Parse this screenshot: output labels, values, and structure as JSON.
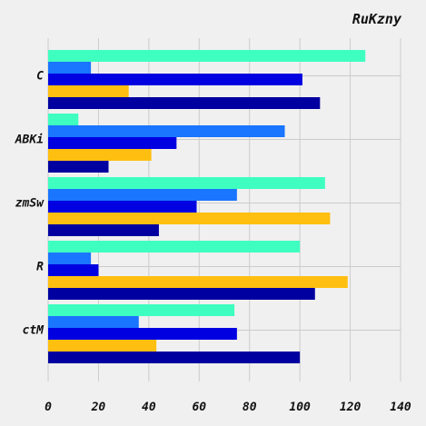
{
  "chart_data": {
    "type": "bar",
    "orientation": "horizontal",
    "title": "RuKzny",
    "xlabel": "",
    "ylabel": "",
    "categories": [
      "C",
      "ABKi",
      "zmSw",
      "R",
      "ctM"
    ],
    "series": [
      {
        "color": "#3fffc0",
        "values": [
          126,
          12,
          110,
          100,
          74
        ]
      },
      {
        "color": "#1a75ff",
        "values": [
          17,
          94,
          75,
          17,
          36
        ]
      },
      {
        "color": "#0000e0",
        "values": [
          101,
          51,
          59,
          20,
          75
        ]
      },
      {
        "color": "#ffbf10",
        "values": [
          32,
          41,
          112,
          119,
          43
        ]
      },
      {
        "color": "#0000a0",
        "values": [
          108,
          24,
          44,
          106,
          100
        ]
      }
    ],
    "xlim": [
      0,
      140
    ],
    "xticks": [
      "0",
      "20",
      "40",
      "60",
      "80",
      "100",
      "120",
      "140"
    ],
    "grid": true,
    "legend": "none"
  }
}
